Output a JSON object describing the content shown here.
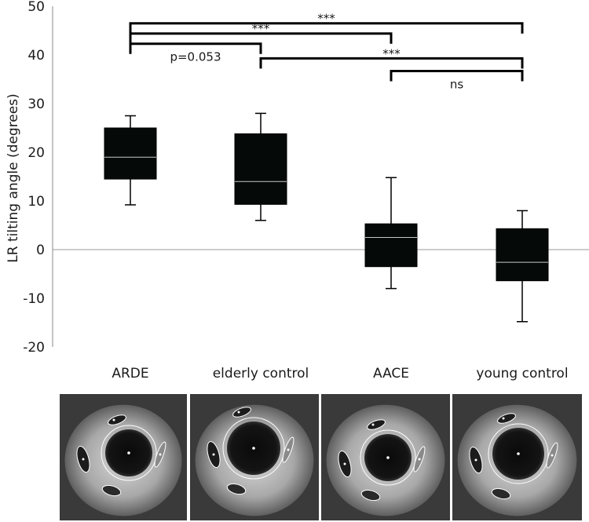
{
  "chart_data": {
    "type": "box",
    "xlabel": "",
    "ylabel": "LR tilting angle (degrees)",
    "ylim": [
      -20,
      50
    ],
    "yticks": [
      -20,
      -10,
      0,
      10,
      20,
      30,
      40,
      50
    ],
    "ytick_labels": [
      "-20",
      "-10",
      "0",
      "10",
      "20",
      "30",
      "40",
      "50"
    ],
    "zero_line": true,
    "grid": false,
    "categories": [
      "ARDE",
      "elderly control",
      "AACE",
      "young control"
    ],
    "boxes": [
      {
        "category": "ARDE",
        "min": 9.2,
        "q1": 14.5,
        "median": 19.0,
        "q3": 25.0,
        "max": 27.5
      },
      {
        "category": "elderly control",
        "min": 6.0,
        "q1": 9.3,
        "median": 14.0,
        "q3": 23.8,
        "max": 28.0
      },
      {
        "category": "AACE",
        "min": -8.0,
        "q1": -3.5,
        "median": 2.5,
        "q3": 5.3,
        "max": 14.8
      },
      {
        "category": "young control",
        "min": -14.8,
        "q1": -6.4,
        "median": -2.6,
        "q3": 4.3,
        "max": 8.0
      }
    ],
    "significance": [
      {
        "from": "ARDE",
        "to": "young control",
        "y": 46.5,
        "label": "***"
      },
      {
        "from": "ARDE",
        "to": "AACE",
        "y": 44.4,
        "label": "***"
      },
      {
        "from": "ARDE",
        "to": "elderly control",
        "y": 42.3,
        "label": "p=0.053"
      },
      {
        "from": "elderly control",
        "to": "young control",
        "y": 39.3,
        "label": "***"
      },
      {
        "from": "AACE",
        "to": "young control",
        "y": 36.7,
        "label": "ns"
      }
    ],
    "colors": {
      "box": "#050a08",
      "median": "#c8c8c8",
      "line": "#000000",
      "zero_line": "#999999"
    }
  },
  "image_panels": [
    {
      "name": "mri-panel-arde"
    },
    {
      "name": "mri-panel-elderly-control"
    },
    {
      "name": "mri-panel-aace"
    },
    {
      "name": "mri-panel-young-control"
    }
  ]
}
